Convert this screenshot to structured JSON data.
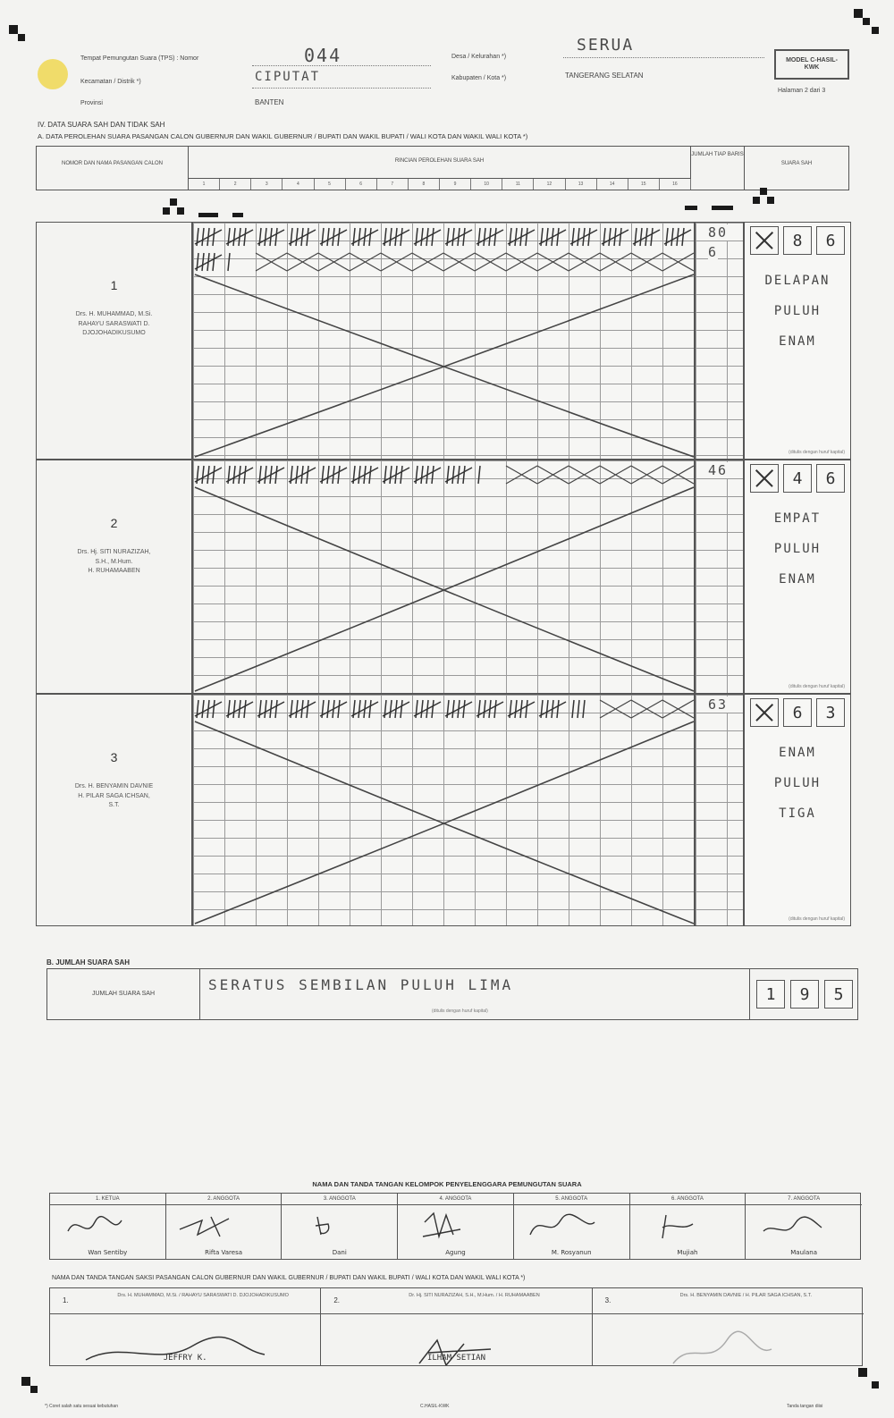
{
  "header": {
    "tps_label": "Tempat Pemungutan Suara (TPS) : Nomor",
    "tps_number": "044",
    "desa_label": "Desa / Kelurahan *)",
    "desa_value": "SERUA",
    "kecamatan_label": "Kecamatan / Distrik *)",
    "kecamatan_value": "CIPUTAT",
    "kabupaten_label": "Kabupaten / Kota *)",
    "kabupaten_value": "TANGERANG SELATAN",
    "provinsi_label": "Provinsi",
    "provinsi_value": "BANTEN",
    "model_code": "MODEL C-HASIL-KWK",
    "page_info": "Halaman 2 dari 3"
  },
  "section_iv": {
    "title": "IV.   DATA SUARA SAH DAN TIDAK SAH",
    "subtitle": "A. DATA PEROLEHAN SUARA PASANGAN CALON GUBERNUR DAN WAKIL GUBERNUR / BUPATI DAN WAKIL BUPATI / WALI KOTA DAN WAKIL WALI KOTA *)"
  },
  "table_header": {
    "col_candidate": "NOMOR DAN NAMA PASANGAN CALON",
    "col_tally": "RINCIAN PEROLEHAN SUARA SAH",
    "col_total": "JUMLAH TIAP BARIS",
    "col_valid": "SUARA SAH",
    "tally_columns": [
      "1",
      "2",
      "3",
      "4",
      "5",
      "6",
      "7",
      "8",
      "9",
      "10",
      "11",
      "12",
      "13",
      "14",
      "15",
      "16"
    ]
  },
  "candidates": [
    {
      "number": "1",
      "names": [
        "Drs. H. MUHAMMAD, M.Si.",
        "RAHAYU SARASWATI D.",
        "DJOJOHADIKUSUMO"
      ],
      "row_totals": [
        "80",
        "6"
      ],
      "digits": [
        "",
        "8",
        "6"
      ],
      "words": [
        "DELAPAN",
        "PULUH",
        "ENAM"
      ],
      "hint": "(ditulis dengan huruf kapital)"
    },
    {
      "number": "2",
      "names": [
        "Drs. Hj. SITI NURAZIZAH,",
        "S.H., M.Hum.",
        "H. RUHAMAABEN"
      ],
      "row_totals": [
        "46"
      ],
      "digits": [
        "",
        "4",
        "6"
      ],
      "words": [
        "EMPAT",
        "PULUH",
        "ENAM"
      ],
      "hint": "(ditulis dengan huruf kapital)"
    },
    {
      "number": "3",
      "names": [
        "Drs. H. BENYAMIN DAVNIE",
        "H. PILAR SAGA ICHSAN,",
        "S.T."
      ],
      "row_totals": [
        "63"
      ],
      "digits": [
        "",
        "6",
        "3"
      ],
      "words": [
        "ENAM",
        "PULUH",
        "TIGA"
      ],
      "hint": "(ditulis dengan huruf kapital)"
    }
  ],
  "section_b": {
    "title": "B. JUMLAH SUARA SAH",
    "label": "JUMLAH SUARA SAH",
    "words": "SERATUS SEMBILAN PULUH LIMA",
    "hint": "(ditulis dengan huruf kapital)",
    "digits": [
      "1",
      "9",
      "5"
    ]
  },
  "kpps": {
    "title": "NAMA DAN TANDA TANGAN KELOMPOK PENYELENGGARA PEMUNGUTAN SUARA",
    "members": [
      {
        "role": "1. KETUA",
        "name": "Wan Sentiby"
      },
      {
        "role": "2. ANGGOTA",
        "name": "Rifta Varesa"
      },
      {
        "role": "3. ANGGOTA",
        "name": "Dani"
      },
      {
        "role": "4. ANGGOTA",
        "name": "Agung"
      },
      {
        "role": "5. ANGGOTA",
        "name": "M. Rosyanun"
      },
      {
        "role": "6. ANGGOTA",
        "name": "Mujiah"
      },
      {
        "role": "7. ANGGOTA",
        "name": "Maulana"
      }
    ]
  },
  "saksi": {
    "title": "NAMA DAN TANDA TANGAN SAKSI PASANGAN CALON GUBERNUR DAN WAKIL GUBERNUR / BUPATI DAN WAKIL BUPATI / WALI KOTA DAN WAKIL WALI KOTA *)",
    "witnesses": [
      {
        "num": "1.",
        "candidate": "Drs. H. MUHAMMAD, M.Si. / RAHAYU SARASWATI D. DJOJOHADIKUSUMO",
        "name": "JEFFRY K."
      },
      {
        "num": "2.",
        "candidate": "Dr. Hj. SITI NURAZIZAH, S.H., M.Hum. / H. RUHAMAABEN",
        "name": "ILHAM   SETIAN"
      },
      {
        "num": "3.",
        "candidate": "Drs. H. BENYAMIN DAVNIE / H. PILAR SAGA ICHSAN, S.T.",
        "name": ""
      }
    ]
  },
  "footer": {
    "left": "*) Coret salah satu sesuai kebutuhan",
    "center": "C.HASIL-KWK",
    "right": "Tanda tangan diisi"
  }
}
